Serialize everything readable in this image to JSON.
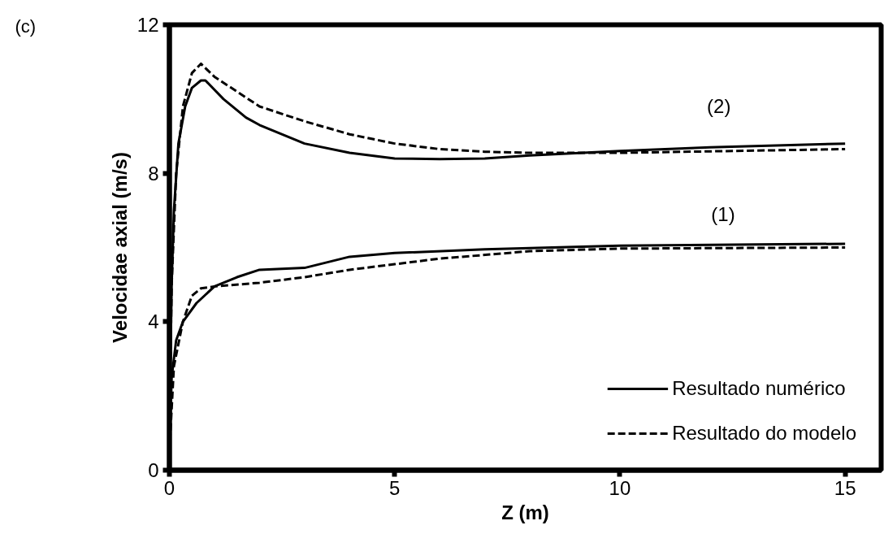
{
  "chart_data": {
    "type": "line",
    "xlabel": "Z (m)",
    "ylabel": "Velocidae axial (m/s)",
    "xlim": [
      0,
      15.8
    ],
    "ylim": [
      0,
      12
    ],
    "xticks": [
      0,
      5,
      10,
      15
    ],
    "yticks": [
      0,
      4,
      8,
      12
    ],
    "grid": false,
    "legend": "bottom right",
    "marker": "none",
    "series": [
      {
        "name": "Resultado numérico",
        "color": "#000000",
        "line_style": "solid",
        "x": [
          0,
          0.05,
          0.15,
          0.3,
          0.6,
          1,
          1.5,
          2,
          3,
          4,
          5,
          7,
          10,
          15
        ],
        "values": [
          0.5,
          2.5,
          3.5,
          4.0,
          4.5,
          4.95,
          5.2,
          5.4,
          5.45,
          5.75,
          5.85,
          5.95,
          6.05,
          6.1
        ]
      },
      {
        "name": "Resultado do modelo",
        "color": "#000000",
        "line_style": "dashed",
        "x": [
          0,
          0.1,
          0.3,
          0.5,
          0.7,
          1,
          2,
          3,
          4,
          5,
          6,
          8,
          10,
          15
        ],
        "values": [
          0.5,
          2.8,
          4.0,
          4.7,
          4.9,
          4.95,
          5.05,
          5.2,
          5.4,
          5.55,
          5.7,
          5.9,
          5.97,
          6.0
        ]
      },
      {
        "color": "#000000",
        "line_style": "solid",
        "x": [
          0,
          0.05,
          0.1,
          0.2,
          0.35,
          0.5,
          0.7,
          0.8,
          1.2,
          1.7,
          2,
          3,
          4,
          5,
          6,
          7,
          8,
          10,
          12,
          15
        ],
        "values": [
          1,
          5,
          7,
          8.8,
          9.8,
          10.3,
          10.5,
          10.5,
          10.0,
          9.5,
          9.3,
          8.8,
          8.55,
          8.4,
          8.38,
          8.4,
          8.48,
          8.6,
          8.7,
          8.8
        ]
      },
      {
        "color": "#000000",
        "line_style": "dashed",
        "x": [
          0,
          0.05,
          0.15,
          0.3,
          0.5,
          0.7,
          1,
          2,
          3,
          4,
          5,
          6,
          7,
          8,
          10,
          15
        ],
        "values": [
          1,
          5,
          8,
          9.8,
          10.7,
          10.95,
          10.6,
          9.8,
          9.4,
          9.05,
          8.8,
          8.65,
          8.58,
          8.55,
          8.55,
          8.65
        ]
      }
    ],
    "annotations": [
      "(c)",
      "(2)",
      "(1)"
    ]
  }
}
